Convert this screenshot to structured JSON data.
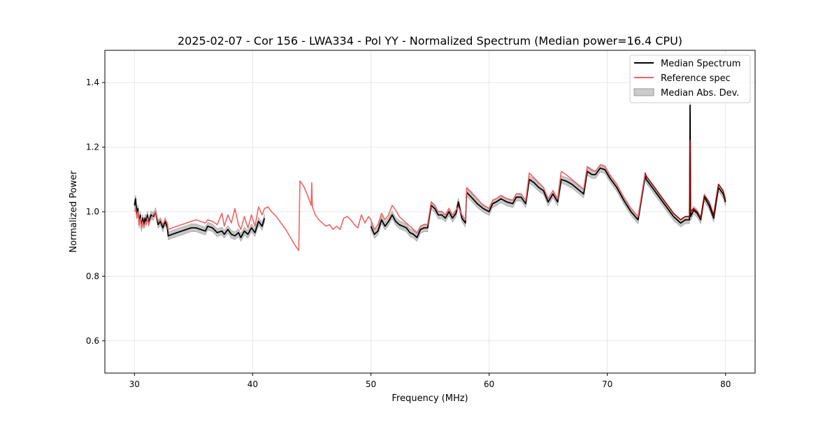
{
  "chart_data": {
    "type": "line",
    "title": "2025-02-07 - Cor 156 - LWA334 - Pol YY - Normalized Spectrum (Median power=16.4 CPU)",
    "xlabel": "Frequency (MHz)",
    "ylabel": "Normalized Power",
    "xlim": [
      27.5,
      82.5
    ],
    "ylim": [
      0.5,
      1.5
    ],
    "xticks": [
      30,
      40,
      50,
      60,
      70,
      80
    ],
    "yticks": [
      0.6,
      0.8,
      1.0,
      1.2,
      1.4
    ],
    "xtick_labels": [
      "30",
      "40",
      "50",
      "60",
      "70",
      "80"
    ],
    "ytick_labels": [
      "0.6",
      "0.8",
      "1.0",
      "1.2",
      "1.4"
    ],
    "grid": true,
    "legend_position": "top-right",
    "colors": {
      "median": "#000000",
      "reference": "#f06464",
      "mad_fill": "#b3b3b3",
      "mad_edge": "#999999",
      "reference_overlap": "#8b0000"
    },
    "series": [
      {
        "name": "Median Spectrum",
        "segments": [
          {
            "x": [
              30.0,
              30.1,
              30.2,
              30.3,
              30.4,
              30.5,
              30.6,
              30.7,
              30.8,
              30.9,
              31.0,
              31.1,
              31.2,
              31.4,
              31.6,
              31.8,
              32.0,
              32.2,
              32.4,
              32.6,
              32.8,
              32.85,
              33.2,
              33.6,
              34.0,
              34.4,
              34.8,
              35.2,
              35.6,
              36.0,
              36.2,
              36.6,
              37.0,
              37.4,
              37.6,
              37.9,
              38.2,
              38.5,
              38.8,
              39.0,
              39.3,
              39.6,
              39.9,
              40.2,
              40.5,
              40.8,
              41.0
            ],
            "y": [
              1.02,
              1.04,
              0.99,
              1.01,
              0.96,
              0.99,
              0.95,
              0.98,
              0.96,
              0.98,
              0.97,
              0.99,
              0.965,
              0.99,
              0.985,
              1.0,
              0.96,
              0.97,
              0.95,
              0.97,
              0.95,
              0.925,
              0.93,
              0.935,
              0.94,
              0.945,
              0.95,
              0.95,
              0.945,
              0.94,
              0.955,
              0.95,
              0.935,
              0.94,
              0.93,
              0.945,
              0.93,
              0.925,
              0.935,
              0.92,
              0.94,
              0.93,
              0.95,
              0.935,
              0.97,
              0.955,
              0.98
            ]
          },
          {
            "x": [
              50.0,
              50.3,
              50.6,
              50.9,
              51.2,
              51.5,
              51.8,
              52.1,
              52.4,
              52.7,
              53.0,
              53.3,
              53.6,
              53.9,
              54.2,
              54.5,
              54.8,
              55.1,
              55.4,
              55.7,
              56.0,
              56.3,
              56.6,
              56.9,
              57.2,
              57.4,
              57.7,
              58.0,
              58.1,
              58.5,
              59.0,
              59.5,
              60.0,
              60.3,
              60.6,
              61.0,
              61.5,
              62.0,
              62.3,
              62.7,
              63.1,
              63.4,
              63.8,
              64.2,
              64.6,
              65.0,
              65.4,
              65.8,
              66.1,
              66.5,
              67.0,
              67.5,
              68.0,
              68.3,
              68.7,
              69.0,
              69.4,
              69.8,
              70.2,
              70.8,
              71.4,
              72.0,
              72.6,
              73.2,
              73.3,
              73.8,
              74.4,
              75.0,
              75.6,
              76.2,
              76.6,
              76.95,
              77.0,
              77.05,
              77.3,
              77.6,
              77.9,
              78.2,
              78.6,
              79.0,
              79.4,
              79.8,
              80.0
            ],
            "y": [
              0.955,
              0.93,
              0.94,
              0.975,
              0.955,
              0.97,
              0.99,
              0.97,
              0.96,
              0.955,
              0.95,
              0.935,
              0.93,
              0.92,
              0.945,
              0.95,
              0.95,
              1.02,
              1.01,
              0.99,
              0.99,
              0.98,
              1.0,
              0.98,
              0.995,
              1.03,
              0.98,
              0.965,
              1.06,
              1.045,
              1.025,
              1.01,
              1.0,
              1.025,
              1.03,
              1.04,
              1.03,
              1.025,
              1.045,
              1.045,
              1.025,
              1.1,
              1.09,
              1.075,
              1.065,
              1.03,
              1.055,
              1.03,
              1.1,
              1.095,
              1.085,
              1.07,
              1.055,
              1.125,
              1.115,
              1.115,
              1.135,
              1.13,
              1.105,
              1.075,
              1.035,
              1.0,
              0.975,
              1.11,
              1.1,
              1.075,
              1.045,
              1.015,
              0.985,
              0.965,
              0.975,
              0.975,
              1.33,
              0.985,
              1.005,
              0.995,
              0.975,
              1.045,
              1.02,
              0.98,
              1.075,
              1.055,
              1.03
            ]
          }
        ]
      },
      {
        "name": "Reference spec",
        "x": [
          30.0,
          30.1,
          30.2,
          30.3,
          30.4,
          30.5,
          30.6,
          30.7,
          30.8,
          30.9,
          31.0,
          31.1,
          31.2,
          31.4,
          31.6,
          31.8,
          32.0,
          32.2,
          32.4,
          32.6,
          32.8,
          32.85,
          33.2,
          33.6,
          34.0,
          34.4,
          34.8,
          35.2,
          35.6,
          36.0,
          36.2,
          36.6,
          37.0,
          37.4,
          37.6,
          37.9,
          38.2,
          38.5,
          38.8,
          39.0,
          39.3,
          39.6,
          39.9,
          40.2,
          40.5,
          40.8,
          41.0,
          41.3,
          41.6,
          42.0,
          42.4,
          42.8,
          43.2,
          43.6,
          43.9,
          44.0,
          44.3,
          44.6,
          44.95,
          45.0,
          45.05,
          45.3,
          45.6,
          45.9,
          46.2,
          46.5,
          46.8,
          47.1,
          47.4,
          47.7,
          48.0,
          48.3,
          48.6,
          48.9,
          49.2,
          49.5,
          49.8,
          50.0,
          50.3,
          50.6,
          50.9,
          51.2,
          51.5,
          51.8,
          52.1,
          52.4,
          52.7,
          53.0,
          53.3,
          53.6,
          53.9,
          54.2,
          54.5,
          54.8,
          55.1,
          55.4,
          55.7,
          56.0,
          56.3,
          56.6,
          56.9,
          57.2,
          57.4,
          57.7,
          58.0,
          58.1,
          58.5,
          59.0,
          59.5,
          60.0,
          60.3,
          60.6,
          61.0,
          61.5,
          62.0,
          62.3,
          62.7,
          63.1,
          63.4,
          63.8,
          64.2,
          64.6,
          65.0,
          65.4,
          65.8,
          66.1,
          66.5,
          67.0,
          67.5,
          68.0,
          68.3,
          68.7,
          69.0,
          69.4,
          69.8,
          70.2,
          70.8,
          71.4,
          72.0,
          72.6,
          73.2,
          73.3,
          73.8,
          74.4,
          75.0,
          75.6,
          76.2,
          76.6,
          76.95,
          77.0,
          77.05,
          77.3,
          77.6,
          77.9,
          78.2,
          78.6,
          79.0,
          79.4,
          79.8,
          80.0
        ],
        "y": [
          1.0,
          1.01,
          0.98,
          1.0,
          0.96,
          0.98,
          0.95,
          0.97,
          0.95,
          0.965,
          0.96,
          0.98,
          0.96,
          0.98,
          0.99,
          1.0,
          0.97,
          0.975,
          0.96,
          0.975,
          0.965,
          0.945,
          0.95,
          0.955,
          0.96,
          0.965,
          0.97,
          0.975,
          0.97,
          0.965,
          0.975,
          0.97,
          0.96,
          0.995,
          0.955,
          0.99,
          0.965,
          1.01,
          0.96,
          0.945,
          0.985,
          0.95,
          0.99,
          0.955,
          1.015,
          0.99,
          1.01,
          1.015,
          1.0,
          0.985,
          0.965,
          0.945,
          0.92,
          0.895,
          0.88,
          1.095,
          1.08,
          1.055,
          1.02,
          1.09,
          1.015,
          0.99,
          0.975,
          0.965,
          0.955,
          0.96,
          0.945,
          0.955,
          0.945,
          0.98,
          0.985,
          0.975,
          0.96,
          0.95,
          0.99,
          0.965,
          0.985,
          0.975,
          0.945,
          0.96,
          0.995,
          0.975,
          0.99,
          1.02,
          1.005,
          0.985,
          0.975,
          0.965,
          0.955,
          0.945,
          0.935,
          0.955,
          0.96,
          0.96,
          1.03,
          1.02,
          1.0,
          1.0,
          0.99,
          1.01,
          0.99,
          1.005,
          1.015,
          0.99,
          0.975,
          1.075,
          1.06,
          1.04,
          1.02,
          1.01,
          1.035,
          1.04,
          1.05,
          1.04,
          1.035,
          1.055,
          1.055,
          1.035,
          1.12,
          1.105,
          1.09,
          1.075,
          1.04,
          1.065,
          1.04,
          1.125,
          1.115,
          1.1,
          1.085,
          1.07,
          1.14,
          1.13,
          1.125,
          1.145,
          1.14,
          1.115,
          1.085,
          1.045,
          1.01,
          0.985,
          1.12,
          1.11,
          1.085,
          1.055,
          1.025,
          0.995,
          0.975,
          0.985,
          0.985,
          1.22,
          1.0,
          1.01,
          1.0,
          0.98,
          1.05,
          1.03,
          0.99,
          1.085,
          1.065,
          1.035
        ]
      },
      {
        "name": "Median Abs. Dev.",
        "half_width": 0.012
      }
    ]
  }
}
